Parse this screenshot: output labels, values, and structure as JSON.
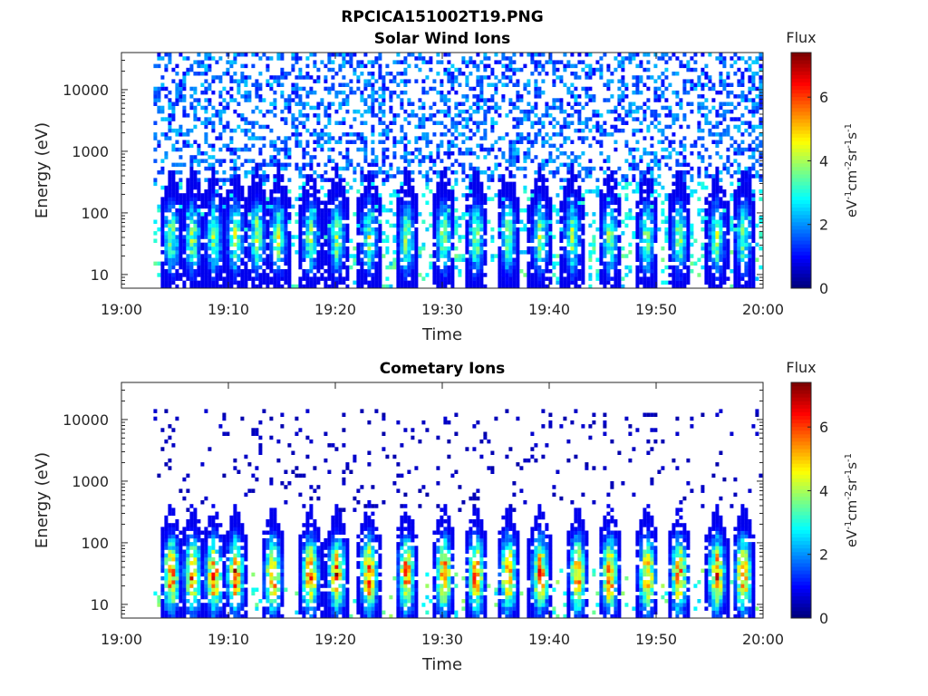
{
  "figure_title": "RPCICA151002T19.PNG",
  "colormap": [
    "#00007f",
    "#0000ff",
    "#007fff",
    "#00ffff",
    "#7fff7f",
    "#ffff00",
    "#ff7f00",
    "#ff0000",
    "#7f0000"
  ],
  "chart_data": [
    {
      "type": "heatmap",
      "title": "Solar Wind Ions",
      "xlabel": "Time",
      "ylabel": "Energy (eV)",
      "x_ticks": [
        "19:00",
        "19:10",
        "19:20",
        "19:30",
        "19:40",
        "19:50",
        "20:00"
      ],
      "xlim_minutes": [
        0,
        60
      ],
      "y_scale": "log",
      "y_ticks": [
        10,
        100,
        1000,
        10000
      ],
      "y_tick_labels": [
        "10",
        "100",
        "1000",
        "10000"
      ],
      "ylim": [
        6,
        40000
      ],
      "data_start_minute": 3,
      "colorbar": {
        "title": "Flux",
        "ticks": [
          "0",
          "2",
          "4",
          "6"
        ],
        "range": [
          0,
          7.4
        ],
        "units": "eV-1cm-2sr-1s-1"
      },
      "series": [
        {
          "name": "low-energy bursts",
          "energy_peak_eV": 40,
          "flux_peak": 4.2,
          "burst_minutes": [
            4.5,
            6.5,
            8.5,
            10.5,
            12.5,
            14.5,
            17.5,
            20,
            23,
            26.5,
            30,
            33,
            36,
            39,
            42,
            45.5,
            49,
            52,
            55.5,
            58
          ]
        },
        {
          "name": "background",
          "energy_range_eV": [
            300,
            40000
          ],
          "flux_level": 1.8
        }
      ]
    },
    {
      "type": "heatmap",
      "title": "Cometary Ions",
      "xlabel": "Time",
      "ylabel": "Energy (eV)",
      "x_ticks": [
        "19:00",
        "19:10",
        "19:20",
        "19:30",
        "19:40",
        "19:50",
        "20:00"
      ],
      "xlim_minutes": [
        0,
        60
      ],
      "y_scale": "log",
      "y_ticks": [
        10,
        100,
        1000,
        10000
      ],
      "y_tick_labels": [
        "10",
        "100",
        "1000",
        "10000"
      ],
      "ylim": [
        6,
        40000
      ],
      "data_start_minute": 3,
      "colorbar": {
        "title": "Flux",
        "ticks": [
          "0",
          "2",
          "4",
          "6"
        ],
        "range": [
          0,
          7.4
        ],
        "units": "eV-1cm-2sr-1s-1"
      },
      "series": [
        {
          "name": "cometary bursts",
          "energy_peak_eV": 30,
          "flux_peak": 6.5,
          "burst_minutes": [
            4.5,
            6.5,
            8.5,
            10.5,
            14,
            17.5,
            20,
            23,
            26.5,
            30,
            33,
            36,
            39,
            42.5,
            45.5,
            49,
            52,
            55.5,
            58
          ]
        },
        {
          "name": "sparse high-energy",
          "energy_range_eV": [
            300,
            15000
          ],
          "flux_level": 0.3
        }
      ]
    }
  ]
}
